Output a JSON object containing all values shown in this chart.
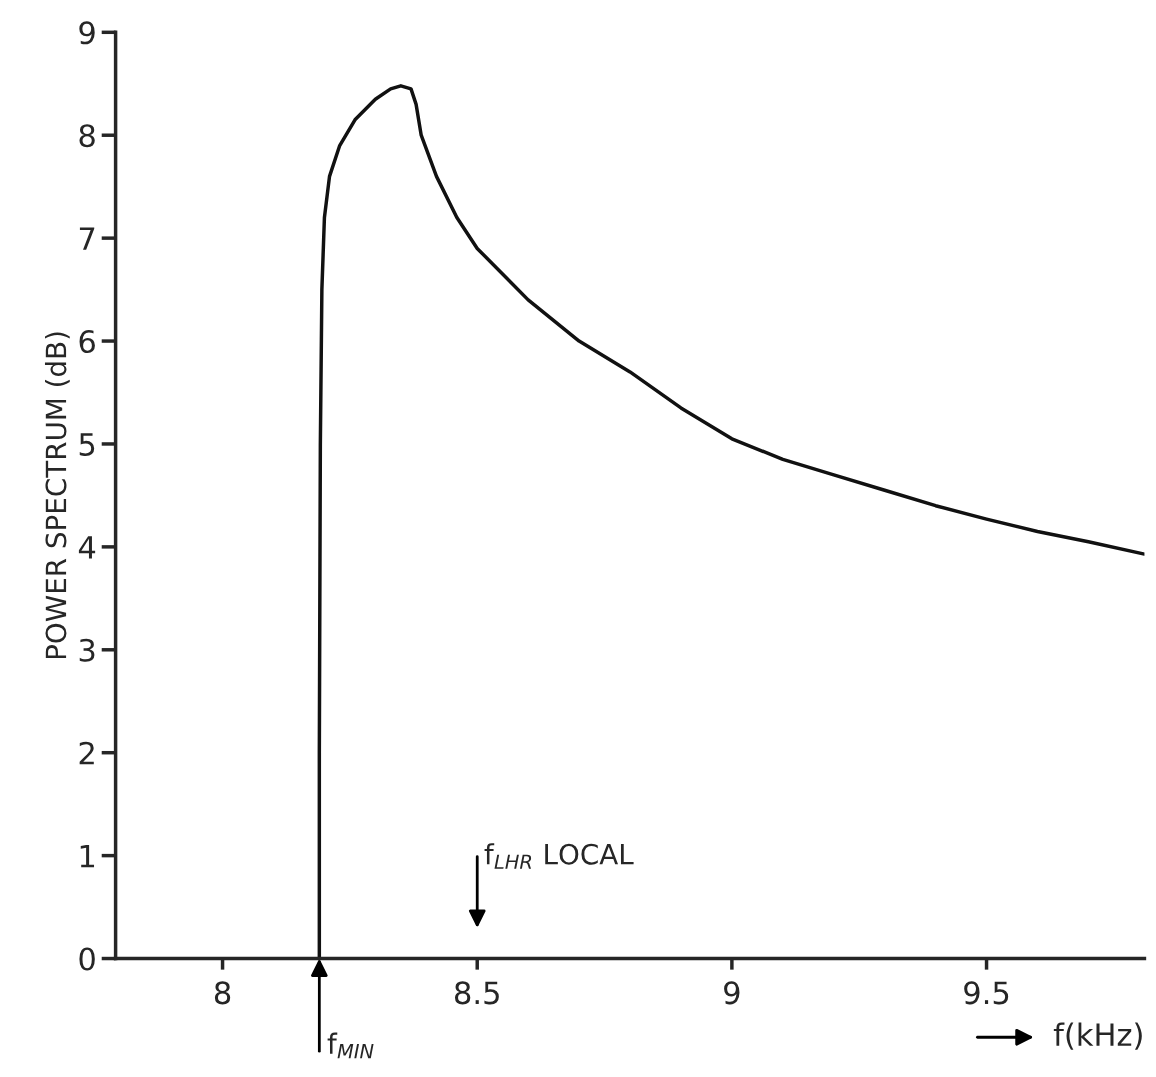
{
  "chart_data": {
    "type": "line",
    "xlabel": "f(kHz)",
    "ylabel": "POWER SPECTRUM (dB)",
    "xlim": [
      7.79,
      9.81
    ],
    "ylim": [
      0,
      9
    ],
    "xticks": [
      8,
      8.5,
      9,
      9.5
    ],
    "yticks": [
      0,
      1,
      2,
      3,
      4,
      5,
      6,
      7,
      8,
      9
    ],
    "grid": false,
    "marker": "none",
    "line_style": "solid",
    "series": [
      {
        "color": "#111111",
        "x": [
          8.19,
          8.19,
          8.192,
          8.195,
          8.2,
          8.21,
          8.23,
          8.26,
          8.3,
          8.33,
          8.35,
          8.37,
          8.38,
          8.39,
          8.42,
          8.46,
          8.5,
          8.6,
          8.7,
          8.8,
          8.9,
          9.0,
          9.1,
          9.2,
          9.3,
          9.4,
          9.5,
          9.6,
          9.7,
          9.81
        ],
        "values": [
          0,
          2,
          5,
          6.5,
          7.2,
          7.6,
          7.9,
          8.15,
          8.35,
          8.45,
          8.48,
          8.45,
          8.3,
          8.0,
          7.6,
          7.2,
          6.9,
          6.4,
          6.0,
          5.7,
          5.35,
          5.05,
          4.85,
          4.7,
          4.55,
          4.4,
          4.27,
          4.15,
          4.05,
          3.93
        ]
      }
    ],
    "annotations": [
      {
        "text": "f$_{MIN}$",
        "x": 8.19,
        "y": 0
      },
      "f$_{LHR}$ LOCAL"
    ]
  }
}
